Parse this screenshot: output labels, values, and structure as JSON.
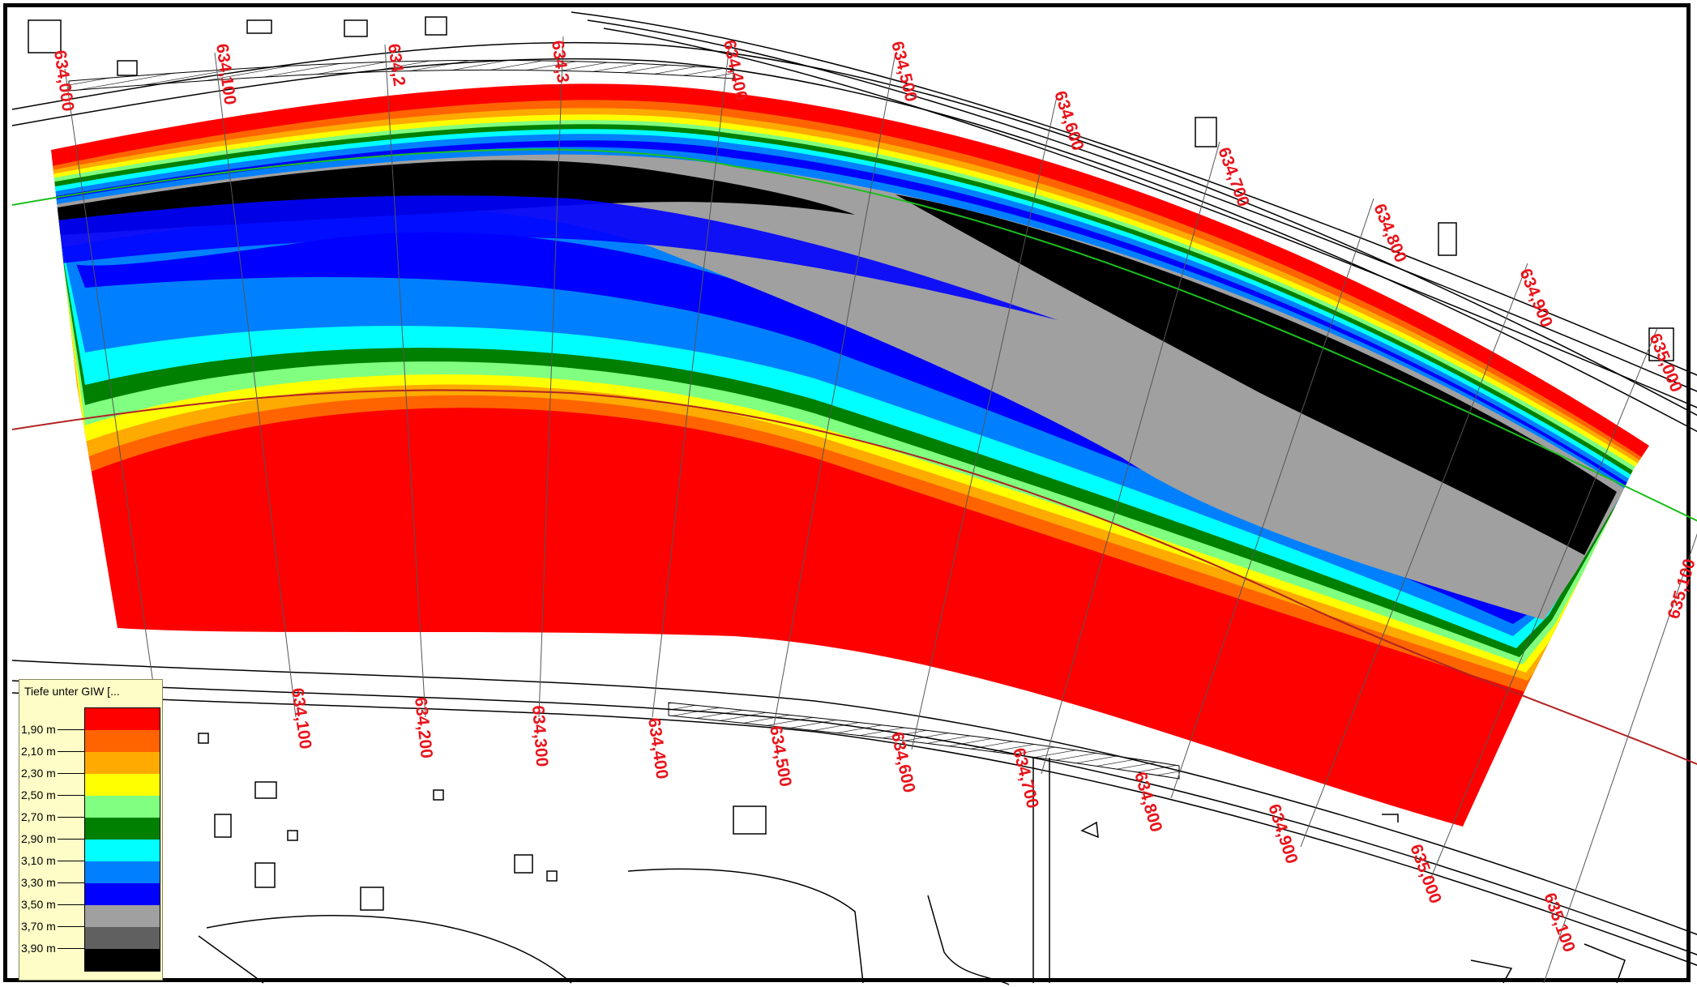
{
  "legend": {
    "title": "Tiefe unter GIW [...",
    "classes": [
      {
        "label": "1,90 m",
        "color": "#ff0000"
      },
      {
        "label": "2,10 m",
        "color": "#ff6400"
      },
      {
        "label": "2,30 m",
        "color": "#ffaa00"
      },
      {
        "label": "2,50 m",
        "color": "#ffff00"
      },
      {
        "label": "2,70 m",
        "color": "#80ff80"
      },
      {
        "label": "2,90 m",
        "color": "#008000"
      },
      {
        "label": "3,10 m",
        "color": "#00ffff"
      },
      {
        "label": "3,30 m",
        "color": "#0080ff"
      },
      {
        "label": "3,50 m",
        "color": "#0000ff"
      },
      {
        "label": "3,70 m",
        "color": "#a0a0a0"
      },
      {
        "label": "3,90 m",
        "color": "#606060"
      },
      {
        "label": "",
        "color": "#000000"
      }
    ]
  },
  "axis_lines": {
    "upper_color": "#1bbf1b",
    "lower_color": "#b22222",
    "label_color": "#e8141b"
  },
  "upper_km_labels": [
    "634,000",
    "634,100",
    "634,2",
    "634,3",
    "634,400",
    "634,500",
    "634,600",
    "634,700",
    "634,800",
    "634,900",
    "635,000",
    "635,100"
  ],
  "lower_km_labels": [
    "634,100",
    "634,200",
    "634,300",
    "634,400",
    "634,500",
    "634,600",
    "634,700",
    "634,800",
    "634,900",
    "635,000",
    "635,100"
  ]
}
